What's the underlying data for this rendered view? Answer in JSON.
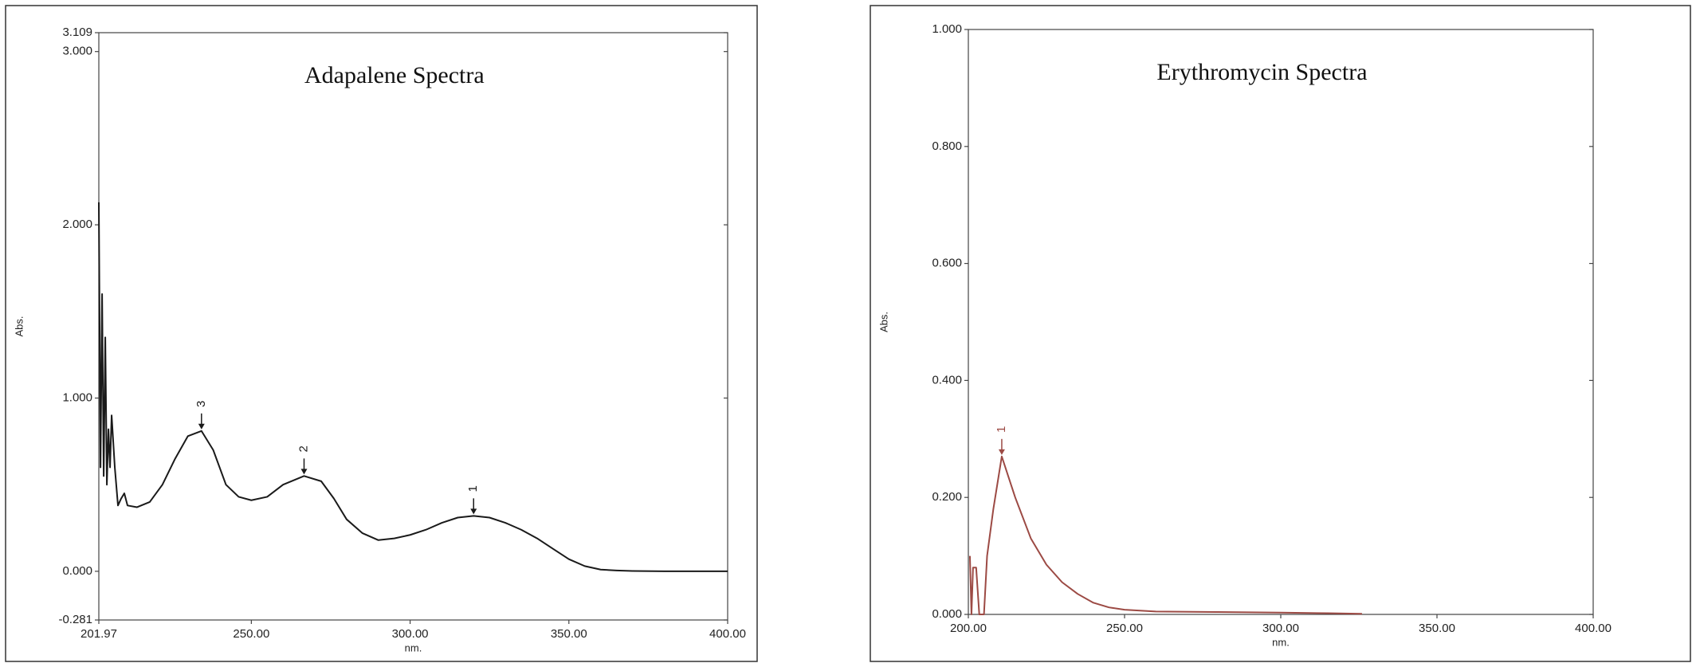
{
  "chart_data": [
    {
      "type": "line",
      "title": "Adapalene Spectra",
      "xlabel": "nm.",
      "ylabel": "Abs.",
      "x": [
        201.97,
        202.5,
        203.0,
        203.5,
        204.0,
        204.5,
        205.0,
        205.5,
        206.0,
        207.0,
        208.0,
        209.0,
        210.0,
        211.0,
        214.0,
        218.0,
        222.0,
        226.0,
        230.0,
        234.3,
        238.0,
        242.0,
        246.0,
        250.0,
        255.0,
        260.0,
        266.6,
        272.0,
        276.0,
        280.0,
        285.0,
        290.0,
        295.0,
        300.0,
        305.0,
        310.0,
        315.0,
        320.0,
        325.0,
        330.0,
        335.0,
        340.0,
        345.0,
        350.0,
        355.0,
        360.0,
        365.0,
        370.0,
        380.0,
        400.0
      ],
      "series": [
        {
          "name": "Adapalene",
          "color": "#1a1a1a",
          "values": [
            2.13,
            0.6,
            1.6,
            0.55,
            1.35,
            0.5,
            0.82,
            0.6,
            0.9,
            0.6,
            0.38,
            0.42,
            0.45,
            0.38,
            0.37,
            0.4,
            0.5,
            0.65,
            0.78,
            0.81,
            0.7,
            0.5,
            0.43,
            0.41,
            0.43,
            0.5,
            0.55,
            0.52,
            0.42,
            0.3,
            0.22,
            0.18,
            0.19,
            0.21,
            0.24,
            0.28,
            0.31,
            0.32,
            0.31,
            0.28,
            0.24,
            0.19,
            0.13,
            0.07,
            0.03,
            0.01,
            0.005,
            0.002,
            0,
            0
          ]
        }
      ],
      "peaks": [
        {
          "label": "3",
          "x": 234.3,
          "y": 0.81
        },
        {
          "label": "2",
          "x": 266.6,
          "y": 0.55
        },
        {
          "label": "1",
          "x": 320.0,
          "y": 0.32
        }
      ],
      "xlim": [
        201.97,
        400
      ],
      "ylim": [
        -0.281,
        3.109
      ],
      "xticks": [
        201.97,
        {
          "value": 250,
          "label": "250.00"
        },
        {
          "value": 300,
          "label": "300.00"
        },
        {
          "value": 350,
          "label": "350.00"
        },
        {
          "value": 400,
          "label": "400.00"
        }
      ],
      "yticks": [
        {
          "value": -0.281,
          "label": "-0.281"
        },
        {
          "value": 0,
          "label": "0.000"
        },
        {
          "value": 1,
          "label": "1.000"
        },
        {
          "value": 2,
          "label": "2.000"
        },
        {
          "value": 3,
          "label": "3.000"
        },
        3.109
      ],
      "grid": false
    },
    {
      "type": "line",
      "title": "Erythromycin Spectra",
      "xlabel": "nm.",
      "ylabel": "Abs.",
      "x": [
        200.5,
        201.0,
        201.5,
        202.5,
        203.5,
        205.0,
        206.0,
        208.0,
        210.7,
        215.0,
        220.0,
        225.0,
        230.0,
        235.0,
        240.0,
        245.0,
        250.0,
        260.0,
        280.0,
        300.0,
        315.0,
        326.0
      ],
      "series": [
        {
          "name": "Erythromycin",
          "color": "#9c4a44",
          "values": [
            0.1,
            0,
            0.08,
            0.08,
            0,
            0,
            0.1,
            0.18,
            0.27,
            0.2,
            0.13,
            0.085,
            0.055,
            0.035,
            0.02,
            0.012,
            0.008,
            0.005,
            0.004,
            0.003,
            0.002,
            0.001
          ]
        }
      ],
      "peaks": [
        {
          "label": "1",
          "x": 210.7,
          "y": 0.27
        }
      ],
      "xlim": [
        200,
        400
      ],
      "ylim": [
        0,
        1
      ],
      "xticks": [
        {
          "value": 200,
          "label": "200.00"
        },
        {
          "value": 250,
          "label": "250.00"
        },
        {
          "value": 300,
          "label": "300.00"
        },
        {
          "value": 350,
          "label": "350.00"
        },
        {
          "value": 400,
          "label": "400.00"
        }
      ],
      "yticks": [
        {
          "value": 0,
          "label": "0.000"
        },
        {
          "value": 0.2,
          "label": "0.200"
        },
        {
          "value": 0.4,
          "label": "0.400"
        },
        {
          "value": 0.6,
          "label": "0.600"
        },
        {
          "value": 0.8,
          "label": "0.800"
        },
        {
          "value": 1,
          "label": "1.000"
        }
      ],
      "grid": false
    }
  ]
}
